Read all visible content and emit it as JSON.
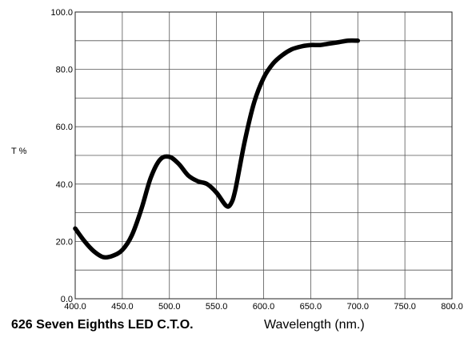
{
  "chart_data": {
    "type": "line",
    "title": "626 Seven Eighths LED C.T.O.",
    "xlabel": "Wavelength (nm.)",
    "ylabel": "T %",
    "xlim": [
      400,
      800
    ],
    "ylim": [
      0,
      100
    ],
    "xticks": [
      "400.0",
      "450.0",
      "500.0",
      "550.0",
      "600.0",
      "650.0",
      "700.0",
      "750.0",
      "800.0"
    ],
    "yticks": [
      "0.0",
      "20.0",
      "40.0",
      "60.0",
      "80.0",
      "100.0"
    ],
    "grid": true,
    "line_color": "#000000",
    "series": [
      {
        "x": [
          400,
          410,
          420,
          430,
          440,
          450,
          460,
          470,
          480,
          490,
          500,
          510,
          520,
          530,
          540,
          550,
          560,
          565,
          570,
          580,
          590,
          600,
          610,
          620,
          630,
          640,
          650,
          660,
          670,
          680,
          690,
          700
        ],
        "y": [
          24.5,
          20,
          16.5,
          14.5,
          15,
          17,
          22,
          31,
          42,
          48.5,
          49.5,
          47,
          43,
          41,
          40,
          37,
          32.5,
          33,
          38,
          55,
          68.5,
          77,
          82,
          85,
          87,
          88,
          88.5,
          88.5,
          89,
          89.5,
          90,
          90
        ]
      }
    ]
  }
}
